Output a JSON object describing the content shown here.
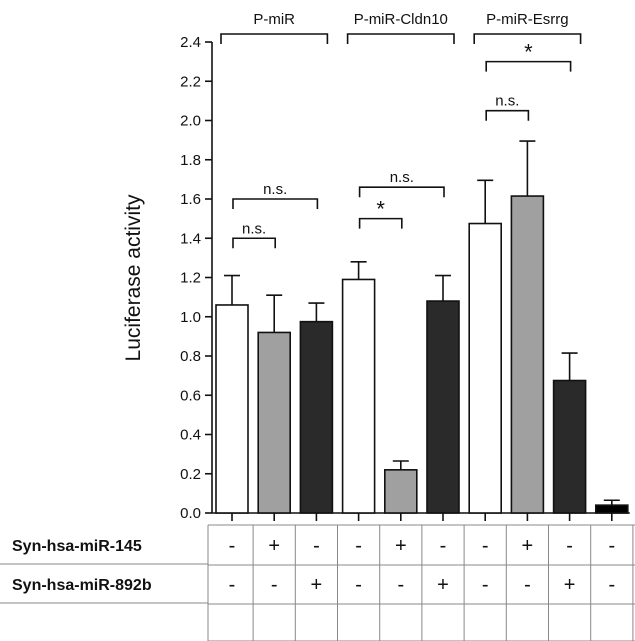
{
  "chart_data": {
    "type": "bar",
    "ylabel": "Luciferase  activity",
    "ylim": [
      0,
      2.4
    ],
    "yticks": [
      "0.0",
      "0.2",
      "0.4",
      "0.6",
      "0.8",
      "1.0",
      "1.2",
      "1.4",
      "1.6",
      "1.8",
      "2.0",
      "2.2",
      "2.4"
    ],
    "colors": {
      "white": "#ffffff",
      "gray": "#a0a0a0",
      "dark": "#2a2a2a",
      "black": "#000000"
    },
    "bars": [
      {
        "value": 1.06,
        "error": 0.15,
        "color": "white"
      },
      {
        "value": 0.92,
        "error": 0.19,
        "color": "gray"
      },
      {
        "value": 0.975,
        "error": 0.095,
        "color": "dark"
      },
      {
        "value": 1.19,
        "error": 0.09,
        "color": "white"
      },
      {
        "value": 0.22,
        "error": 0.045,
        "color": "gray"
      },
      {
        "value": 1.08,
        "error": 0.13,
        "color": "dark"
      },
      {
        "value": 1.475,
        "error": 0.22,
        "color": "white"
      },
      {
        "value": 1.615,
        "error": 0.28,
        "color": "gray"
      },
      {
        "value": 0.675,
        "error": 0.14,
        "color": "dark"
      },
      {
        "value": 0.04,
        "error": 0.025,
        "color": "black"
      }
    ],
    "groups": [
      {
        "label": "P-miR",
        "from": 0,
        "to": 2
      },
      {
        "label": "P-miR-Cldn10",
        "from": 3,
        "to": 5
      },
      {
        "label": "P-miR-Esrrg",
        "from": 6,
        "to": 8
      }
    ],
    "comparisons": [
      {
        "a": 0,
        "b": 1,
        "label": "n.s.",
        "y": 1.4
      },
      {
        "a": 0,
        "b": 2,
        "label": "n.s.",
        "y": 1.6
      },
      {
        "a": 3,
        "b": 4,
        "label": "*",
        "y": 1.5
      },
      {
        "a": 3,
        "b": 5,
        "label": "n.s.",
        "y": 1.66
      },
      {
        "a": 6,
        "b": 7,
        "label": "n.s.",
        "y": 2.05
      },
      {
        "a": 6,
        "b": 8,
        "label": "*",
        "y": 2.3
      }
    ],
    "table": {
      "rows": [
        {
          "label": "Syn-hsa-miR-145",
          "signs": [
            "-",
            "+",
            "-",
            "-",
            "+",
            "-",
            "-",
            "+",
            "-",
            "-"
          ]
        },
        {
          "label": "Syn-hsa-miR-892b",
          "signs": [
            "-",
            "-",
            "+",
            "-",
            "-",
            "+",
            "-",
            "-",
            "+",
            "-"
          ]
        }
      ]
    }
  }
}
